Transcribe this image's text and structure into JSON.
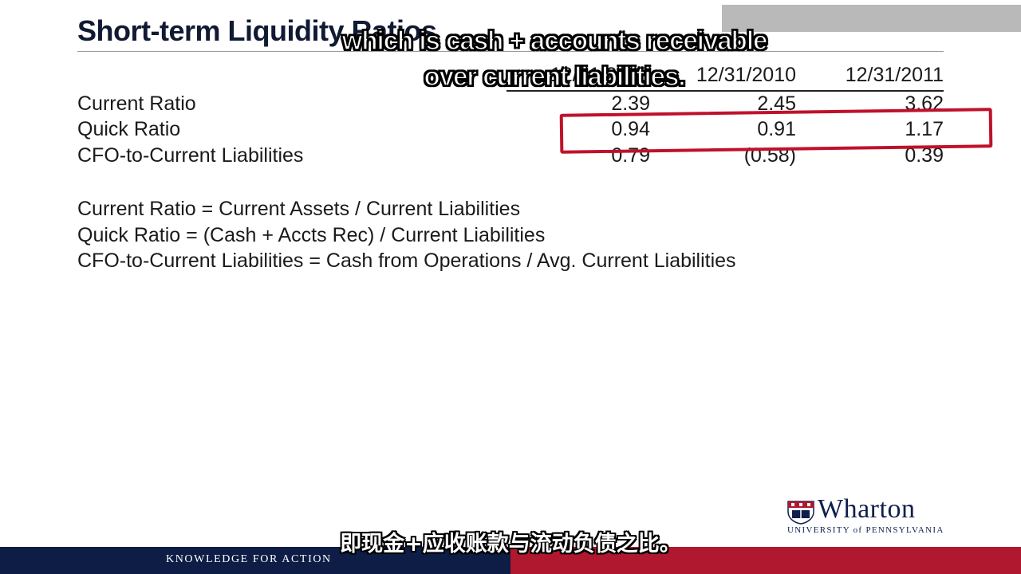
{
  "slide": {
    "title": "Short-term Liquidity Ratios"
  },
  "subtitles": {
    "english_line1": "which is cash + accounts receivable",
    "english_line2": "over current liabilities.",
    "chinese": "即现金+应收账款与流动负债之比。"
  },
  "table": {
    "columns": [
      "12/31/2009",
      "12/31/2010",
      "12/31/2011"
    ],
    "rows": [
      {
        "label": "Current Ratio",
        "values": [
          "2.39",
          "2.45",
          "3.62"
        ]
      },
      {
        "label": "Quick Ratio",
        "values": [
          "0.94",
          "0.91",
          "1.17"
        ]
      },
      {
        "label": "CFO-to-Current Liabilities",
        "values": [
          "0.79",
          "(0.58)",
          "0.39"
        ]
      }
    ],
    "highlighted_row": "Quick Ratio",
    "highlight_color": "#c0112a"
  },
  "formulas": [
    "Current Ratio = Current Assets / Current Liabilities",
    "Quick Ratio = (Cash + Accts Rec) / Current Liabilities",
    "CFO-to-Current Liabilities = Cash from Operations / Avg. Current Liabilities"
  ],
  "branding": {
    "logo_name": "Wharton",
    "logo_sub": "UNIVERSITY of PENNSYLVANIA",
    "tagline": "KNOWLEDGE FOR ACTION",
    "navy": "#0d1d45",
    "red": "#b0182f"
  }
}
